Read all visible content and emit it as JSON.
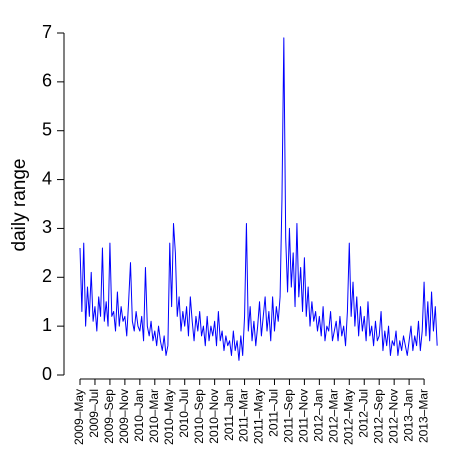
{
  "chart_data": {
    "type": "line",
    "ylabel": "daily range",
    "color": "#0000ff",
    "ylim": [
      0,
      7
    ],
    "yticks": [
      0,
      1,
      2,
      3,
      4,
      5,
      6,
      7
    ],
    "categories": [
      "2009–May",
      null,
      null,
      null,
      null,
      null,
      null,
      null,
      "2009–Jul",
      null,
      null,
      null,
      null,
      null,
      null,
      null,
      "2009–Sep",
      null,
      null,
      null,
      null,
      null,
      null,
      null,
      "2009–Nov",
      null,
      null,
      null,
      null,
      null,
      null,
      null,
      "2010–Jan",
      null,
      null,
      null,
      null,
      null,
      null,
      null,
      "2010–Mar",
      null,
      null,
      null,
      null,
      null,
      null,
      null,
      "2010–May",
      null,
      null,
      null,
      null,
      null,
      null,
      null,
      "2010–Jul",
      null,
      null,
      null,
      null,
      null,
      null,
      null,
      "2010–Sep",
      null,
      null,
      null,
      null,
      null,
      null,
      null,
      "2010–Nov",
      null,
      null,
      null,
      null,
      null,
      null,
      null,
      "2011–Jan",
      null,
      null,
      null,
      null,
      null,
      null,
      null,
      "2011–Mar",
      null,
      null,
      null,
      null,
      null,
      null,
      null,
      "2011–May",
      null,
      null,
      null,
      null,
      null,
      null,
      null,
      "2011–Jul",
      null,
      null,
      null,
      null,
      null,
      null,
      null,
      "2011–Sep",
      null,
      null,
      null,
      null,
      null,
      null,
      null,
      "2011–Nov",
      null,
      null,
      null,
      null,
      null,
      null,
      null,
      "2012–Jan",
      null,
      null,
      null,
      null,
      null,
      null,
      null,
      "2012–Mar",
      null,
      null,
      null,
      null,
      null,
      null,
      null,
      "2012–May",
      null,
      null,
      null,
      null,
      null,
      null,
      null,
      "2012–Jul",
      null,
      null,
      null,
      null,
      null,
      null,
      null,
      "2012–Sep",
      null,
      null,
      null,
      null,
      null,
      null,
      null,
      "2012–Nov",
      null,
      null,
      null,
      null,
      null,
      null,
      null,
      "2013–Jan",
      null,
      null,
      null,
      null,
      null,
      null,
      null,
      "2013–Mar",
      null,
      null,
      null,
      null,
      null,
      null,
      null
    ],
    "values": [
      2.6,
      1.3,
      2.7,
      1.0,
      1.8,
      1.2,
      2.1,
      1.1,
      1.4,
      0.9,
      1.6,
      1.2,
      2.6,
      1.1,
      1.5,
      1.0,
      2.7,
      1.2,
      1.3,
      0.9,
      1.7,
      1.0,
      1.4,
      1.1,
      1.2,
      0.8,
      1.5,
      2.3,
      1.1,
      0.9,
      1.3,
      1.0,
      0.9,
      1.2,
      0.7,
      2.2,
      1.0,
      0.8,
      1.1,
      0.7,
      0.9,
      0.6,
      1.0,
      0.7,
      0.5,
      0.8,
      0.4,
      0.6,
      2.7,
      1.4,
      3.1,
      2.5,
      1.2,
      1.6,
      0.9,
      1.3,
      1.0,
      1.4,
      0.8,
      1.6,
      1.1,
      0.7,
      1.2,
      0.9,
      1.3,
      0.8,
      1.0,
      0.6,
      1.2,
      0.7,
      1.0,
      0.8,
      1.1,
      0.6,
      1.3,
      0.7,
      0.9,
      0.5,
      0.8,
      0.6,
      0.7,
      0.4,
      0.9,
      0.5,
      0.7,
      0.3,
      0.8,
      0.4,
      1.2,
      3.1,
      0.9,
      1.4,
      0.7,
      1.1,
      0.6,
      1.0,
      1.5,
      0.8,
      1.2,
      1.6,
      0.9,
      1.3,
      0.7,
      1.6,
      0.9,
      1.4,
      1.1,
      1.6,
      3.6,
      6.9,
      2.8,
      1.7,
      3.0,
      1.8,
      2.5,
      1.4,
      3.1,
      1.6,
      2.2,
      1.3,
      2.4,
      1.2,
      1.8,
      1.0,
      1.5,
      1.1,
      1.3,
      0.9,
      1.2,
      0.8,
      1.4,
      0.7,
      1.0,
      0.9,
      1.3,
      0.7,
      0.9,
      1.1,
      0.7,
      1.2,
      0.8,
      1.0,
      0.6,
      1.3,
      2.7,
      1.2,
      1.9,
      1.0,
      1.6,
      0.8,
      1.4,
      0.9,
      1.2,
      0.7,
      1.5,
      0.8,
      1.0,
      0.6,
      1.1,
      0.7,
      0.8,
      1.3,
      0.5,
      0.9,
      0.6,
      1.0,
      0.4,
      0.7,
      0.6,
      0.9,
      0.4,
      0.7,
      0.5,
      0.8,
      0.6,
      0.4,
      0.7,
      1.0,
      0.5,
      0.8,
      0.6,
      1.1,
      0.5,
      0.9,
      1.9,
      0.8,
      1.5,
      0.7,
      1.7,
      0.9,
      1.4,
      0.6
    ]
  }
}
